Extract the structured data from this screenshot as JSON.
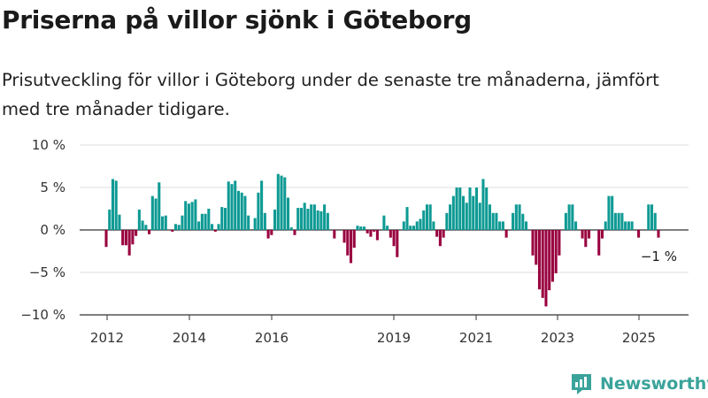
{
  "title": "Priserna på villor sjönk i Göteborg",
  "subtitle": "Prisutveckling för villor i Göteborg under de senaste tre månaderna, jämfört med tre månader tidigare.",
  "brand": "Newsworthy",
  "colors": {
    "positive": "#0e9a94",
    "negative": "#99003f",
    "brand": "#3aa39a"
  },
  "chart_data": {
    "type": "bar",
    "x_unit": "month",
    "y_unit": "%",
    "ylim": [
      -10,
      10
    ],
    "yticks": [
      10,
      5,
      0,
      -5,
      -10
    ],
    "ytick_labels": [
      "10 %",
      "5 %",
      "0 %",
      "−5 %",
      "−10 %"
    ],
    "xticks": [
      "2012",
      "2014",
      "2016",
      "2019",
      "2021",
      "2023",
      "2025"
    ],
    "grid": true,
    "annotation": "−1 %",
    "values": [
      -2.0,
      2.4,
      6.0,
      5.8,
      1.8,
      -1.8,
      -1.8,
      -3.0,
      -1.7,
      -0.7,
      2.4,
      1.1,
      0.6,
      -0.5,
      4.0,
      3.7,
      5.6,
      1.6,
      1.7,
      0,
      -0.2,
      0.7,
      0.6,
      1.7,
      3.4,
      3.1,
      3.3,
      3.6,
      1.0,
      1.9,
      1.9,
      2.5,
      0.7,
      -0.2,
      0.7,
      2.7,
      2.6,
      5.7,
      5.4,
      5.8,
      4.6,
      4.4,
      4.0,
      1.7,
      0,
      1.4,
      4.4,
      5.8,
      2.0,
      -1.0,
      -0.6,
      2.4,
      6.6,
      6.4,
      6.2,
      3.8,
      0.3,
      -0.6,
      2.6,
      2.6,
      3.2,
      2.5,
      3.0,
      3.0,
      2.3,
      2.2,
      3.0,
      2.0,
      0,
      -1.0,
      0,
      0,
      -1.5,
      -3.0,
      -3.9,
      -2.1,
      0.5,
      0.4,
      0.4,
      -0.4,
      -0.8,
      -0.2,
      -1.2,
      0,
      1.7,
      0.5,
      -0.9,
      -1.9,
      -3.2,
      0,
      1.0,
      2.7,
      0.5,
      0.5,
      1.0,
      1.3,
      2.3,
      3.0,
      3.0,
      1.0,
      -0.8,
      -1.9,
      -0.9,
      2.0,
      3.0,
      4.0,
      5.0,
      5.0,
      4.0,
      3.2,
      5.0,
      4.0,
      5.0,
      3.2,
      6.0,
      5.0,
      3.0,
      2.0,
      2.0,
      1.0,
      1.0,
      -0.9,
      0,
      2.0,
      3.0,
      3.0,
      1.9,
      1.0,
      0,
      -3.0,
      -4.1,
      -7.0,
      -8.0,
      -9.0,
      -7.1,
      -6.1,
      -5.1,
      -3.0,
      0,
      2.0,
      3.0,
      3.0,
      1.0,
      0,
      -1.0,
      -2.0,
      -1.0,
      0,
      0,
      -3.0,
      -1.0,
      1.0,
      4.0,
      4.0,
      2.0,
      2.0,
      2.0,
      1.0,
      1.0,
      1.0,
      0,
      -0.9,
      0,
      0,
      3.0,
      3.0,
      2.0,
      -0.9
    ]
  }
}
